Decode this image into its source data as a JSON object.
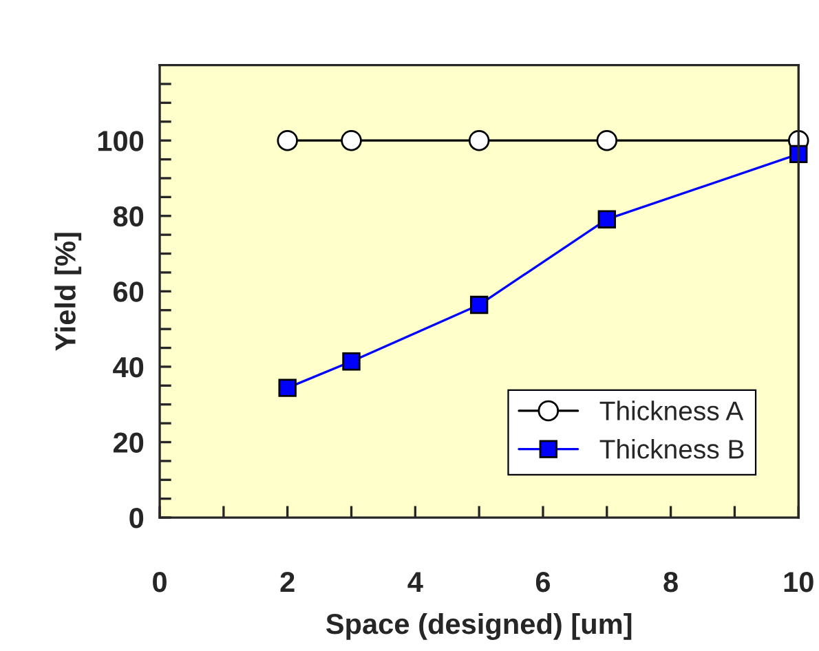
{
  "chart_data": {
    "type": "line",
    "xlabel": "Space (designed) [um]",
    "ylabel": "Yield [%]",
    "x": [
      2,
      3,
      5,
      7,
      10
    ],
    "series": [
      {
        "name": "Thickness A",
        "color": "#000000",
        "values": [
          100,
          100,
          100,
          100,
          100
        ],
        "marker": "circle"
      },
      {
        "name": "Thickness B",
        "color": "#0000ff",
        "values": [
          34.4,
          41.4,
          56.4,
          79.1,
          96.4
        ],
        "marker": "square"
      }
    ],
    "xlim": [
      0,
      10
    ],
    "ylim": [
      0,
      120
    ],
    "xticks": [
      0,
      {
        "value": 1,
        "label": null
      },
      2,
      {
        "value": 3,
        "label": null
      },
      4,
      {
        "value": 5,
        "label": null
      },
      6,
      {
        "value": 7,
        "label": null
      },
      8,
      {
        "value": 9,
        "label": null
      },
      10
    ],
    "yticks": [
      0,
      {
        "value": 5,
        "label": null
      },
      {
        "value": 10,
        "label": null
      },
      {
        "value": 15,
        "label": null
      },
      20,
      {
        "value": 25,
        "label": null
      },
      {
        "value": 30,
        "label": null
      },
      {
        "value": 35,
        "label": null
      },
      40,
      {
        "value": 45,
        "label": null
      },
      {
        "value": 50,
        "label": null
      },
      {
        "value": 55,
        "label": null
      },
      60,
      {
        "value": 65,
        "label": null
      },
      {
        "value": 70,
        "label": null
      },
      {
        "value": 75,
        "label": null
      },
      80,
      {
        "value": 85,
        "label": null
      },
      {
        "value": 90,
        "label": null
      },
      {
        "value": 95,
        "label": null
      },
      100,
      {
        "value": 105,
        "label": null
      },
      {
        "value": 110,
        "label": null
      },
      {
        "value": 115,
        "label": null
      }
    ],
    "grid": false,
    "legend": "bottom right",
    "line_style": "solid"
  }
}
